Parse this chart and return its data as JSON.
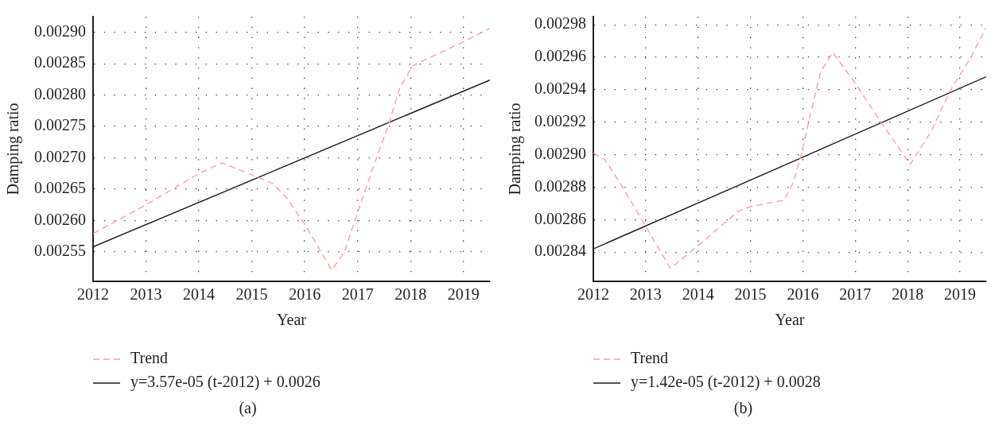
{
  "chart_data": [
    {
      "type": "line",
      "xlabel": "Year",
      "ylabel": "Damping ratio",
      "xlim": [
        2012,
        2019.5
      ],
      "xticks": [
        2012,
        2013,
        2014,
        2015,
        2016,
        2017,
        2018,
        2019
      ],
      "ylim": [
        0.002503,
        0.002925
      ],
      "yticks": [
        0.00255,
        {
          "value": 0.0026,
          "label": "0.00260"
        },
        0.00265,
        {
          "value": 0.0027,
          "label": "0.00270"
        },
        0.00275,
        {
          "value": 0.0028,
          "label": "0.00280"
        },
        0.00285,
        {
          "value": 0.0029,
          "label": "0.00290"
        }
      ],
      "grid": true,
      "legend": "bottom left",
      "series": [
        {
          "name": "Trend",
          "color": "#f3a5a5",
          "line_style": "dashed",
          "x": [
            2012,
            2013,
            2014,
            2014.44,
            2015.4,
            2015.67,
            2016,
            2016.51,
            2016.75,
            2016.96,
            2017.32,
            2017.59,
            2017.79,
            2018.04,
            2019,
            2019.49
          ],
          "values": [
            0.002579,
            0.002625,
            0.002675,
            0.002692,
            0.002659,
            0.002635,
            0.002594,
            0.002521,
            0.00255,
            0.002603,
            0.002691,
            0.002754,
            0.00281,
            0.002847,
            0.002885,
            0.002906
          ]
        },
        {
          "name": "y=3.57e-05 (t-2012) + 0.0026",
          "color": "#1a1a1a",
          "type": "line",
          "line_style": "solid",
          "x": [
            2012,
            2019.5
          ],
          "values": [
            0.002558,
            0.002824
          ]
        }
      ],
      "annotations": [
        "(a)"
      ]
    },
    {
      "type": "line",
      "xlabel": "Year",
      "ylabel": "Damping ratio",
      "xlim": [
        2012,
        2019.5
      ],
      "xticks": [
        2012,
        2013,
        2014,
        2015,
        2016,
        2017,
        2018,
        2019
      ],
      "ylim": [
        0.002822,
        0.002985
      ],
      "yticks": [
        0.00284,
        0.00286,
        0.00288,
        {
          "value": 0.0029,
          "label": "0.00290"
        },
        0.00292,
        0.00294,
        0.00296,
        0.00298
      ],
      "grid": true,
      "legend": "bottom left",
      "series": [
        {
          "name": "Trend",
          "color": "#f3a5a5",
          "line_style": "dashed",
          "x": [
            2012,
            2012.22,
            2012.52,
            2013,
            2013.47,
            2014,
            2014.76,
            2015,
            2015.64,
            2015.82,
            2015.97,
            2016.16,
            2016.34,
            2016.57,
            2017,
            2017.49,
            2018.05,
            2018.46,
            2018.82,
            2019.19,
            2019.49
          ],
          "values": [
            0.002901,
            0.002897,
            0.002882,
            0.002856,
            0.00283,
            0.002844,
            0.002865,
            0.002868,
            0.002872,
            0.002883,
            0.0029,
            0.002927,
            0.002951,
            0.002963,
            0.002944,
            0.00292,
            0.002894,
            0.002915,
            0.00294,
            0.002959,
            0.002978
          ]
        },
        {
          "name": "y=1.42e-05 (t-2012) + 0.0028",
          "color": "#1a1a1a",
          "type": "line",
          "line_style": "solid",
          "x": [
            2012,
            2019.5
          ],
          "values": [
            0.002842,
            0.002948
          ]
        }
      ],
      "annotations": [
        "(b)"
      ]
    }
  ]
}
